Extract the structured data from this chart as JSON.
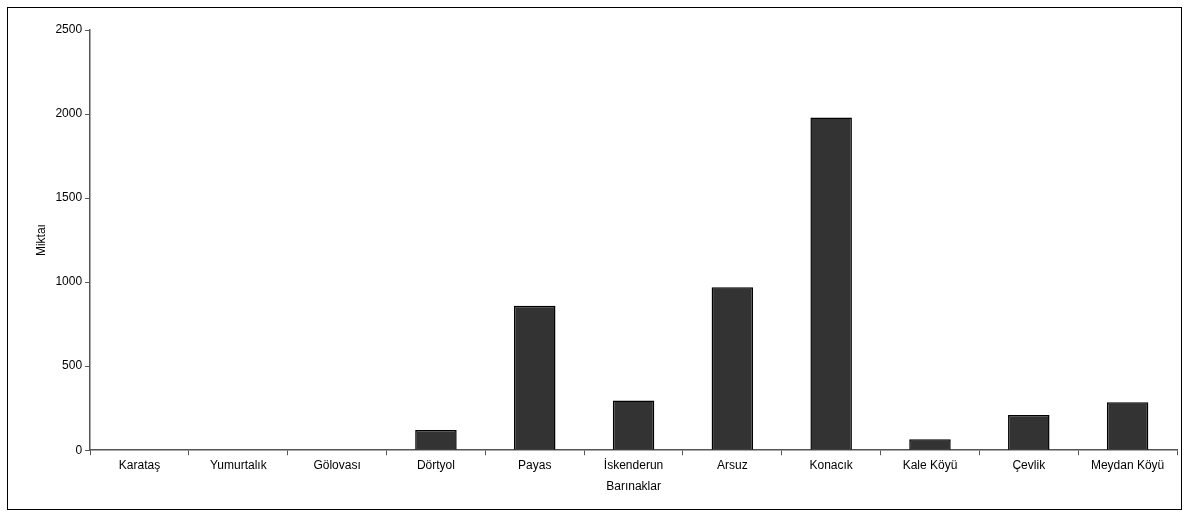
{
  "chart_data": {
    "type": "bar",
    "xlabel": "Barınaklar",
    "ylabel": "Miktaı",
    "categories": [
      "Karataş",
      "Yumurtalık",
      "Gölovası",
      "Dörtyol",
      "Payas",
      "İskenderun",
      "Arsuz",
      "Konacık",
      "Kale Köyü",
      "Çevlik",
      "Meydan Köyü"
    ],
    "values": [
      0,
      0,
      0,
      120,
      860,
      295,
      970,
      1980,
      65,
      210,
      285
    ],
    "color": "#333333",
    "ylim": [
      0,
      2500
    ],
    "yticks": [
      0,
      500,
      1000,
      1500,
      2000,
      2500
    ],
    "grid": false,
    "legend": false
  }
}
